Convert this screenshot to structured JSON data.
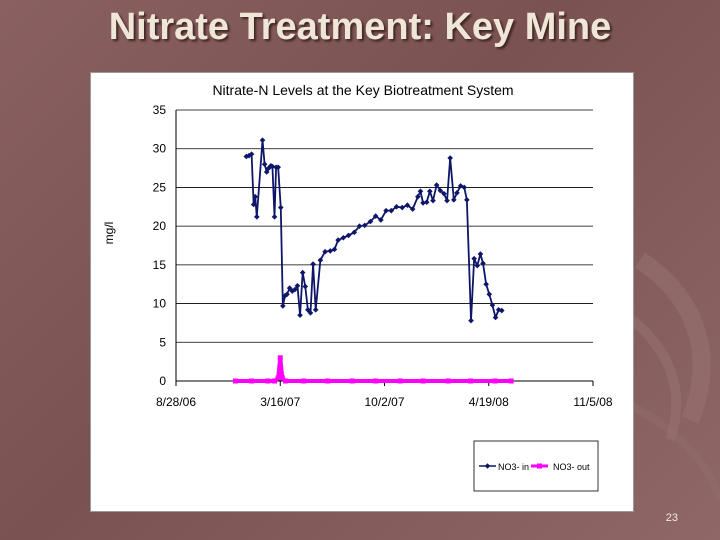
{
  "slide": {
    "title": "Nitrate Treatment:  Key Mine",
    "number": "23"
  },
  "colors": {
    "background": "#7f5757",
    "title_text": "#efe6d8",
    "series_in": "#0d1668",
    "series_out": "#ff00ff"
  },
  "chart_data": {
    "type": "line",
    "title": "Nitrate-N Levels at the Key Biotreatment System",
    "xlabel": "",
    "ylabel": "mg/l",
    "ylim": [
      0,
      35
    ],
    "yticks": [
      0,
      5,
      10,
      15,
      20,
      25,
      30,
      35
    ],
    "x_tick_labels": [
      "8/28/06",
      "3/16/07",
      "10/2/07",
      "4/19/08",
      "11/5/08"
    ],
    "xlim": [
      "2006-08-28",
      "2008-11-05"
    ],
    "grid": "horizontal",
    "legend_position": "bottom-right",
    "series": [
      {
        "name": "NO3- in",
        "color": "#0d1668",
        "marker": "diamond",
        "points": [
          [
            "2007-01-10",
            29.0
          ],
          [
            "2007-01-15",
            29.1
          ],
          [
            "2007-01-20",
            29.3
          ],
          [
            "2007-01-24",
            22.8
          ],
          [
            "2007-01-27",
            23.8
          ],
          [
            "2007-01-30",
            21.2
          ],
          [
            "2007-02-10",
            31.1
          ],
          [
            "2007-02-14",
            28.0
          ],
          [
            "2007-02-18",
            27.0
          ],
          [
            "2007-02-22",
            27.5
          ],
          [
            "2007-02-26",
            27.8
          ],
          [
            "2007-03-01",
            27.7
          ],
          [
            "2007-03-05",
            21.2
          ],
          [
            "2007-03-08",
            27.6
          ],
          [
            "2007-03-12",
            27.6
          ],
          [
            "2007-03-17",
            22.4
          ],
          [
            "2007-03-21",
            9.7
          ],
          [
            "2007-03-25",
            11.0
          ],
          [
            "2007-03-29",
            11.2
          ],
          [
            "2007-04-03",
            12.0
          ],
          [
            "2007-04-08",
            11.6
          ],
          [
            "2007-04-13",
            11.8
          ],
          [
            "2007-04-18",
            12.3
          ],
          [
            "2007-04-23",
            8.5
          ],
          [
            "2007-04-28",
            14.0
          ],
          [
            "2007-05-03",
            12.2
          ],
          [
            "2007-05-08",
            9.2
          ],
          [
            "2007-05-13",
            8.8
          ],
          [
            "2007-05-18",
            15.1
          ],
          [
            "2007-05-23",
            9.2
          ],
          [
            "2007-06-01",
            15.6
          ],
          [
            "2007-06-10",
            16.7
          ],
          [
            "2007-06-20",
            16.8
          ],
          [
            "2007-06-28",
            17.0
          ],
          [
            "2007-07-05",
            18.2
          ],
          [
            "2007-07-15",
            18.5
          ],
          [
            "2007-07-25",
            18.8
          ],
          [
            "2007-08-05",
            19.2
          ],
          [
            "2007-08-15",
            20.0
          ],
          [
            "2007-08-25",
            20.1
          ],
          [
            "2007-09-05",
            20.6
          ],
          [
            "2007-09-15",
            21.3
          ],
          [
            "2007-09-25",
            20.8
          ],
          [
            "2007-10-05",
            22.0
          ],
          [
            "2007-10-15",
            22.0
          ],
          [
            "2007-10-25",
            22.5
          ],
          [
            "2007-11-05",
            22.4
          ],
          [
            "2007-11-15",
            22.7
          ],
          [
            "2007-11-25",
            22.2
          ],
          [
            "2007-12-05",
            23.8
          ],
          [
            "2007-12-10",
            24.5
          ],
          [
            "2007-12-15",
            23.0
          ],
          [
            "2007-12-22",
            23.1
          ],
          [
            "2007-12-28",
            24.5
          ],
          [
            "2008-01-03",
            23.3
          ],
          [
            "2008-01-10",
            25.3
          ],
          [
            "2008-01-17",
            24.6
          ],
          [
            "2008-01-24",
            24.2
          ],
          [
            "2008-01-30",
            23.3
          ],
          [
            "2008-02-05",
            28.8
          ],
          [
            "2008-02-12",
            23.4
          ],
          [
            "2008-02-18",
            24.3
          ],
          [
            "2008-02-25",
            25.2
          ],
          [
            "2008-03-03",
            25.0
          ],
          [
            "2008-03-08",
            23.4
          ],
          [
            "2008-03-16",
            7.8
          ],
          [
            "2008-03-22",
            15.8
          ],
          [
            "2008-03-28",
            14.9
          ],
          [
            "2008-04-03",
            16.4
          ],
          [
            "2008-04-08",
            15.2
          ],
          [
            "2008-04-14",
            12.5
          ],
          [
            "2008-04-20",
            11.2
          ],
          [
            "2008-04-26",
            9.8
          ],
          [
            "2008-05-02",
            8.2
          ],
          [
            "2008-05-08",
            9.2
          ],
          [
            "2008-05-14",
            9.1
          ]
        ]
      },
      {
        "name": "NO3- out",
        "color": "#ff00ff",
        "marker": "square",
        "points": [
          [
            "2006-12-20",
            0.0
          ],
          [
            "2007-01-20",
            0.0
          ],
          [
            "2007-02-20",
            0.0
          ],
          [
            "2007-03-05",
            0.0
          ],
          [
            "2007-03-12",
            0.4
          ],
          [
            "2007-03-16",
            3.0
          ],
          [
            "2007-03-20",
            0.4
          ],
          [
            "2007-03-26",
            0.0
          ],
          [
            "2007-04-30",
            0.0
          ],
          [
            "2007-06-15",
            0.0
          ],
          [
            "2007-08-01",
            0.0
          ],
          [
            "2007-09-15",
            0.0
          ],
          [
            "2007-11-01",
            0.0
          ],
          [
            "2007-12-15",
            0.0
          ],
          [
            "2008-02-01",
            0.0
          ],
          [
            "2008-03-15",
            0.0
          ],
          [
            "2008-05-01",
            0.0
          ],
          [
            "2008-06-01",
            0.0
          ]
        ]
      }
    ]
  }
}
